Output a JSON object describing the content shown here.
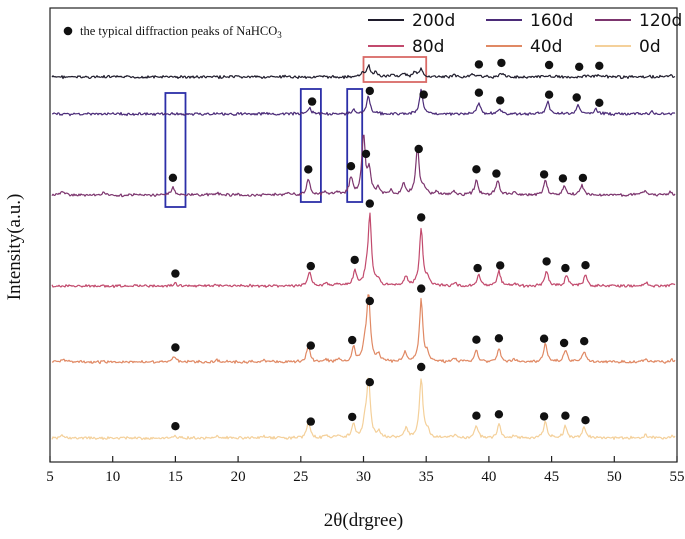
{
  "chart_data": {
    "type": "line",
    "title": "",
    "xlabel": "2θ(drgree)",
    "ylabel": "Intensity(a.u.)",
    "xlim": [
      5,
      55
    ],
    "x_ticks": [
      5,
      10,
      15,
      20,
      25,
      30,
      35,
      40,
      45,
      50,
      55
    ],
    "x_tick_labels": [
      "5",
      "10",
      "15",
      "20",
      "25",
      "30",
      "35",
      "40",
      "45",
      "50",
      "55"
    ],
    "y_ticks": "none",
    "annotation": {
      "marker": "filled-circle",
      "text": "the typical diffraction peaks of NaHCO",
      "subscript": "3"
    },
    "highlight_boxes": [
      {
        "color": "#2c2fa8",
        "x_range": [
          14.2,
          15.8
        ],
        "scope": "lower five patterns"
      },
      {
        "color": "#2c2fa8",
        "x_range": [
          25.0,
          26.6
        ],
        "scope": "lower five patterns"
      },
      {
        "color": "#2c2fa8",
        "x_range": [
          28.7,
          29.9
        ],
        "scope": "lower five patterns"
      },
      {
        "color": "#d86a66",
        "x_range": [
          30.0,
          35.0
        ],
        "scope": "200d pattern"
      }
    ],
    "series": [
      {
        "name": "200d",
        "color": "#1f1c2c",
        "peaks": [
          [
            29.9,
            0.08
          ],
          [
            30.4,
            0.28
          ],
          [
            31.0,
            0.12
          ],
          [
            32.3,
            0.08
          ],
          [
            33.2,
            0.1
          ],
          [
            34.1,
            0.12
          ],
          [
            34.6,
            0.18
          ],
          [
            37.2,
            0.06
          ],
          [
            38.6,
            0.05
          ],
          [
            39.2,
            0.06
          ],
          [
            41.0,
            0.1
          ],
          [
            44.8,
            0.05
          ],
          [
            47.9,
            0.06
          ],
          [
            48.7,
            0.04
          ],
          [
            54.5,
            0.05
          ]
        ],
        "marked_peaks": [
          39.2,
          41.0,
          44.8,
          47.2,
          48.8
        ]
      },
      {
        "name": "160d",
        "color": "#4b2b78",
        "peaks": [
          [
            25.7,
            0.15
          ],
          [
            29.2,
            0.12
          ],
          [
            30.4,
            0.45
          ],
          [
            34.6,
            0.6
          ],
          [
            39.2,
            0.28
          ],
          [
            40.8,
            0.12
          ],
          [
            44.7,
            0.32
          ],
          [
            47.1,
            0.22
          ],
          [
            48.5,
            0.12
          ],
          [
            53.0,
            0.06
          ]
        ],
        "marked_peaks": [
          25.9,
          30.5,
          34.8,
          39.2,
          40.9,
          44.8,
          47.0,
          48.8
        ]
      },
      {
        "name": "120d",
        "color": "#7c356e",
        "peaks": [
          [
            6.0,
            0.08
          ],
          [
            9.3,
            0.05
          ],
          [
            14.8,
            0.15
          ],
          [
            18.3,
            0.05
          ],
          [
            24.0,
            0.06
          ],
          [
            25.6,
            0.32
          ],
          [
            26.9,
            0.06
          ],
          [
            27.9,
            0.06
          ],
          [
            29.0,
            0.35
          ],
          [
            30.0,
            1.25
          ],
          [
            30.45,
            0.5
          ],
          [
            31.2,
            0.15
          ],
          [
            32.2,
            0.08
          ],
          [
            33.2,
            0.22
          ],
          [
            34.3,
            1.0
          ],
          [
            34.8,
            0.15
          ],
          [
            35.8,
            0.07
          ],
          [
            37.2,
            0.07
          ],
          [
            39.0,
            0.32
          ],
          [
            40.7,
            0.32
          ],
          [
            42.0,
            0.06
          ],
          [
            44.5,
            0.3
          ],
          [
            46.0,
            0.18
          ],
          [
            47.4,
            0.2
          ],
          [
            52.4,
            0.08
          ],
          [
            54.5,
            0.06
          ]
        ],
        "marked_peaks": [
          14.8,
          25.6,
          29.0,
          30.2,
          34.4,
          39.0,
          40.6,
          44.4,
          45.9,
          47.5
        ]
      },
      {
        "name": "80d",
        "color": "#c24a6d",
        "peaks": [
          [
            15.0,
            0.05
          ],
          [
            18.3,
            0.04
          ],
          [
            25.7,
            0.28
          ],
          [
            27.0,
            0.06
          ],
          [
            28.0,
            0.05
          ],
          [
            29.3,
            0.3
          ],
          [
            30.2,
            0.2
          ],
          [
            30.5,
            1.45
          ],
          [
            31.2,
            0.12
          ],
          [
            33.4,
            0.2
          ],
          [
            34.6,
            1.2
          ],
          [
            35.1,
            0.15
          ],
          [
            37.3,
            0.06
          ],
          [
            39.2,
            0.22
          ],
          [
            40.8,
            0.3
          ],
          [
            42.1,
            0.05
          ],
          [
            44.6,
            0.3
          ],
          [
            46.2,
            0.22
          ],
          [
            47.7,
            0.22
          ],
          [
            52.5,
            0.08
          ],
          [
            54.6,
            0.05
          ]
        ],
        "marked_peaks": [
          15.0,
          25.8,
          29.3,
          30.5,
          34.6,
          39.1,
          40.9,
          44.6,
          46.1,
          47.7
        ]
      },
      {
        "name": "40d",
        "color": "#e08964",
        "peaks": [
          [
            6.0,
            0.05
          ],
          [
            14.9,
            0.13
          ],
          [
            18.3,
            0.05
          ],
          [
            22.0,
            0.04
          ],
          [
            25.6,
            0.33
          ],
          [
            27.0,
            0.06
          ],
          [
            28.0,
            0.05
          ],
          [
            29.2,
            0.3
          ],
          [
            30.1,
            0.3
          ],
          [
            30.4,
            1.4
          ],
          [
            31.2,
            0.13
          ],
          [
            33.3,
            0.2
          ],
          [
            34.6,
            1.3
          ],
          [
            35.1,
            0.15
          ],
          [
            37.3,
            0.06
          ],
          [
            39.0,
            0.25
          ],
          [
            40.8,
            0.28
          ],
          [
            42.0,
            0.05
          ],
          [
            44.5,
            0.38
          ],
          [
            46.1,
            0.25
          ],
          [
            47.6,
            0.22
          ],
          [
            52.5,
            0.07
          ],
          [
            54.6,
            0.05
          ]
        ],
        "marked_peaks": [
          15.0,
          25.8,
          29.1,
          30.5,
          34.6,
          39.0,
          40.8,
          44.4,
          46.0,
          47.6
        ]
      },
      {
        "name": "0d",
        "color": "#f4d09a",
        "peaks": [
          [
            6.0,
            0.04
          ],
          [
            14.9,
            0.05
          ],
          [
            18.3,
            0.05
          ],
          [
            22.0,
            0.04
          ],
          [
            25.6,
            0.33
          ],
          [
            27.0,
            0.06
          ],
          [
            28.0,
            0.05
          ],
          [
            29.2,
            0.28
          ],
          [
            30.1,
            0.3
          ],
          [
            30.4,
            1.25
          ],
          [
            31.2,
            0.12
          ],
          [
            33.4,
            0.2
          ],
          [
            34.6,
            1.25
          ],
          [
            35.1,
            0.15
          ],
          [
            37.3,
            0.06
          ],
          [
            39.0,
            0.25
          ],
          [
            40.8,
            0.28
          ],
          [
            42.0,
            0.05
          ],
          [
            44.5,
            0.33
          ],
          [
            46.1,
            0.25
          ],
          [
            47.6,
            0.22
          ],
          [
            52.5,
            0.07
          ],
          [
            54.6,
            0.05
          ]
        ],
        "marked_peaks": [
          15.0,
          25.8,
          29.1,
          30.5,
          34.6,
          39.0,
          40.8,
          44.4,
          46.1,
          47.7
        ]
      }
    ],
    "legend": {
      "placement": "top-right",
      "layout": "3 columns x 2 rows",
      "entries": [
        "200d",
        "160d",
        "120d",
        "80d",
        "40d",
        "0d"
      ]
    }
  }
}
